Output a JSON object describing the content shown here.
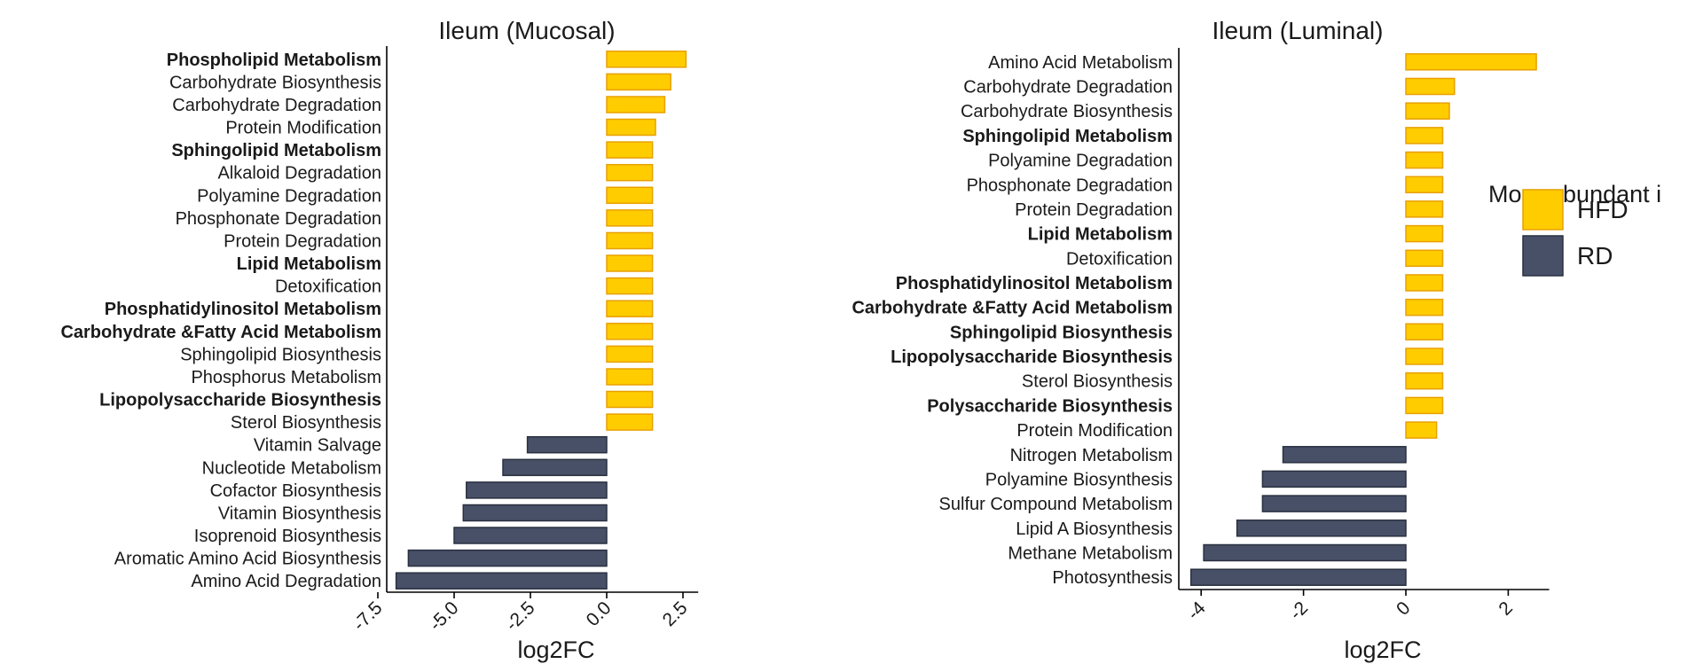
{
  "colors": {
    "HFD": "#FFCC00",
    "HFD_stroke": "#E8A000",
    "RD": "#475067",
    "RD_stroke": "#2A3040",
    "axis": "#000000"
  },
  "legend": {
    "title": "More abundant i",
    "items": [
      {
        "label": "HFD",
        "color": "#FFCC00"
      },
      {
        "label": "RD",
        "color": "#475067"
      }
    ]
  },
  "chart_data": [
    {
      "type": "bar",
      "orientation": "horizontal",
      "title": "Ileum (Mucosal)",
      "xlabel": "log2FC",
      "xlim": [
        -8,
        3
      ],
      "xticks": [
        -7.5,
        -5.0,
        -2.5,
        0.0,
        2.5
      ],
      "xtick_labels": [
        "-7.5",
        "-5.0",
        "-2.5",
        "0.0",
        "2.5"
      ],
      "categories": [
        "Phospholipid Metabolism",
        "Carbohydrate Biosynthesis",
        "Carbohydrate Degradation",
        "Protein Modification",
        "Sphingolipid Metabolism",
        "Alkaloid Degradation",
        "Polyamine Degradation",
        "Phosphonate Degradation",
        "Protein Degradation",
        "Lipid Metabolism",
        "Detoxification",
        "Phosphatidylinositol Metabolism",
        "Carbohydrate &Fatty Acid Metabolism",
        "Sphingolipid Biosynthesis",
        "Phosphorus Metabolism",
        "Lipopolysaccharide Biosynthesis",
        "Sterol Biosynthesis",
        "Vitamin Salvage",
        "Nucleotide Metabolism",
        "Cofactor Biosynthesis",
        "Vitamin Biosynthesis",
        "Isoprenoid Biosynthesis",
        "Aromatic Amino Acid Biosynthesis",
        "Amino Acid Degradation"
      ],
      "bold": [
        true,
        false,
        false,
        false,
        true,
        false,
        false,
        false,
        false,
        true,
        false,
        true,
        true,
        false,
        false,
        true,
        false,
        false,
        false,
        false,
        false,
        false,
        false,
        false
      ],
      "values": [
        2.6,
        2.1,
        1.9,
        1.6,
        1.5,
        1.5,
        1.5,
        1.5,
        1.5,
        1.5,
        1.5,
        1.5,
        1.5,
        1.5,
        1.5,
        1.5,
        1.5,
        -2.6,
        -3.4,
        -4.6,
        -4.7,
        -5.0,
        -6.5,
        -6.9
      ],
      "groups": [
        "HFD",
        "HFD",
        "HFD",
        "HFD",
        "HFD",
        "HFD",
        "HFD",
        "HFD",
        "HFD",
        "HFD",
        "HFD",
        "HFD",
        "HFD",
        "HFD",
        "HFD",
        "HFD",
        "HFD",
        "RD",
        "RD",
        "RD",
        "RD",
        "RD",
        "RD",
        "RD"
      ]
    },
    {
      "type": "bar",
      "orientation": "horizontal",
      "title": "Ileum (Luminal)",
      "xlabel": "log2FC",
      "xlim": [
        -4.3,
        2.8
      ],
      "xticks": [
        -4,
        -2,
        0,
        2
      ],
      "xtick_labels": [
        "-4",
        "-2",
        "0",
        "2"
      ],
      "categories": [
        "Amino Acid Metabolism",
        "Carbohydrate Degradation",
        "Carbohydrate Biosynthesis",
        "Sphingolipid Metabolism",
        "Polyamine Degradation",
        "Phosphonate Degradation",
        "Protein Degradation",
        "Lipid Metabolism",
        "Detoxification",
        "Phosphatidylinositol Metabolism",
        "Carbohydrate &Fatty Acid Metabolism",
        "Sphingolipid Biosynthesis",
        "Lipopolysaccharide Biosynthesis",
        "Sterol Biosynthesis",
        "Polysaccharide Biosynthesis",
        "Protein Modification",
        "Nitrogen Metabolism",
        "Polyamine Biosynthesis",
        "Sulfur Compound Metabolism",
        "Lipid A Biosynthesis",
        "Methane Metabolism",
        "Photosynthesis"
      ],
      "bold": [
        false,
        false,
        false,
        true,
        false,
        false,
        false,
        true,
        false,
        true,
        true,
        true,
        true,
        false,
        true,
        false,
        false,
        false,
        false,
        false,
        false,
        false
      ],
      "values": [
        2.55,
        0.95,
        0.85,
        0.72,
        0.72,
        0.72,
        0.72,
        0.72,
        0.72,
        0.72,
        0.72,
        0.72,
        0.72,
        0.72,
        0.72,
        0.6,
        -2.4,
        -2.8,
        -2.8,
        -3.3,
        -3.95,
        -4.2
      ],
      "groups": [
        "HFD",
        "HFD",
        "HFD",
        "HFD",
        "HFD",
        "HFD",
        "HFD",
        "HFD",
        "HFD",
        "HFD",
        "HFD",
        "HFD",
        "HFD",
        "HFD",
        "HFD",
        "HFD",
        "RD",
        "RD",
        "RD",
        "RD",
        "RD",
        "RD"
      ]
    }
  ]
}
